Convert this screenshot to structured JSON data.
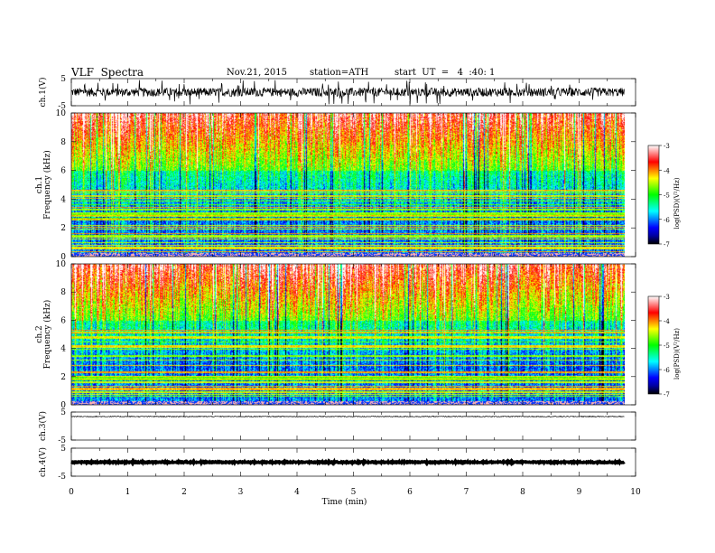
{
  "header": {
    "title": "VLF  Spectra",
    "date": "Nov.21, 2015",
    "station": "station=ATH",
    "start": "start  UT  =   4  :40: 1"
  },
  "chart_data": [
    {
      "type": "line",
      "name": "ch1-waveform",
      "ylabel": "ch.1(V)",
      "ylim": [
        -5,
        5
      ],
      "yticks": [
        "5",
        "-5"
      ],
      "xlim": [
        0,
        10
      ],
      "baseline": 0,
      "amplitude": 1.6,
      "spike_amplitude": 4.5,
      "data_end": 9.8
    },
    {
      "type": "heatmap",
      "name": "ch1-spectrogram",
      "ylabel": "ch.1\nFrequency  (kHz)",
      "ylim": [
        0,
        10
      ],
      "yticks": [
        "0",
        "2",
        "4",
        "6",
        "8",
        "10"
      ],
      "xlim": [
        0,
        10
      ],
      "data_end": 9.8,
      "zlabel": "log(PSD)(V²/Hz)",
      "zlim": [
        -7,
        -3
      ],
      "zticks": [
        "-3",
        "-4",
        "-5",
        "-6",
        "-7"
      ],
      "colormap": [
        "#000000",
        "#0000a0",
        "#0000ff",
        "#0080ff",
        "#00ffff",
        "#00ff80",
        "#00ff00",
        "#80ff00",
        "#ffff00",
        "#ff8000",
        "#ff0000",
        "#ff8080",
        "#ffffff"
      ]
    },
    {
      "type": "heatmap",
      "name": "ch2-spectrogram",
      "ylabel": "ch.2\nFrequency  (kHz)",
      "ylim": [
        0,
        10
      ],
      "yticks": [
        "0",
        "2",
        "4",
        "6",
        "8",
        "10"
      ],
      "xlim": [
        0,
        10
      ],
      "data_end": 9.8,
      "zlabel": "log(PSD)(V²/Hz)",
      "zlim": [
        -7,
        -3
      ],
      "zticks": [
        "-3",
        "-4",
        "-5",
        "-6",
        "-7"
      ],
      "colormap": [
        "#000000",
        "#0000a0",
        "#0000ff",
        "#0080ff",
        "#00ffff",
        "#00ff80",
        "#00ff00",
        "#80ff00",
        "#ffff00",
        "#ff8000",
        "#ff0000",
        "#ff8080",
        "#ffffff"
      ]
    },
    {
      "type": "line",
      "name": "ch3-waveform",
      "ylabel": "ch.3(V)",
      "ylim": [
        -5,
        5
      ],
      "yticks": [
        "5",
        "-5"
      ],
      "xlim": [
        0,
        10
      ],
      "baseline": 3.4,
      "amplitude": 0.15,
      "data_end": 9.8
    },
    {
      "type": "line",
      "name": "ch4-waveform",
      "ylabel": "ch.4(V)",
      "ylim": [
        -5,
        5
      ],
      "yticks": [
        "5",
        "-5"
      ],
      "xlim": [
        0,
        10
      ],
      "baseline": 0,
      "amplitude": 0.2,
      "data_end": 9.8
    }
  ],
  "xaxis": {
    "label": "Time  (min)",
    "ticks": [
      "0",
      "1",
      "2",
      "3",
      "4",
      "5",
      "6",
      "7",
      "8",
      "9",
      "10"
    ]
  }
}
